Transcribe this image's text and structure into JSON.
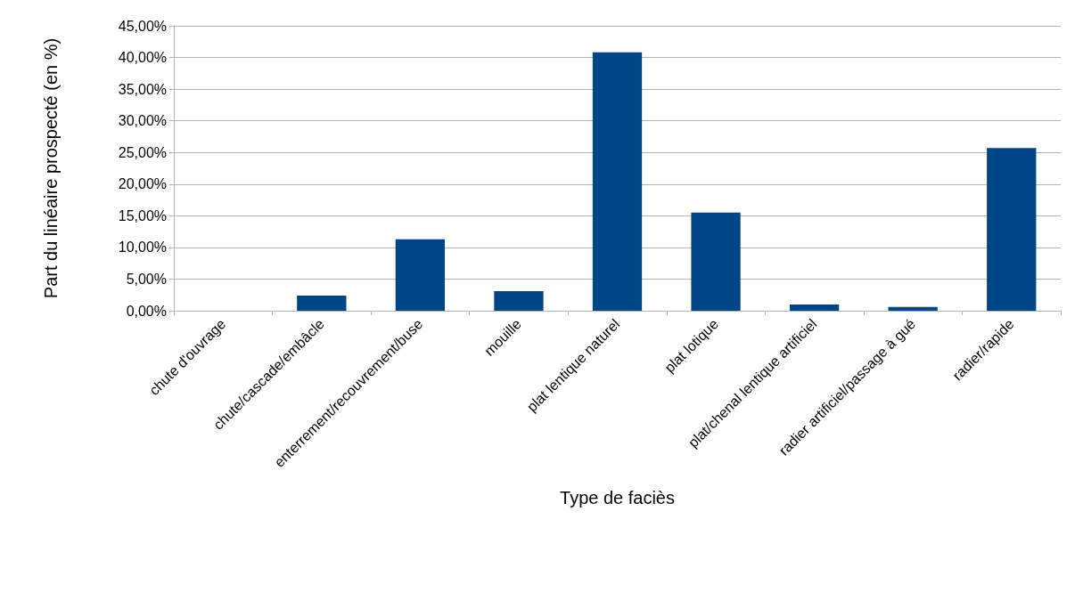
{
  "chart_data": {
    "type": "bar",
    "xlabel": "Type de faciès",
    "ylabel": "Part du linéaire prospecté (en %)",
    "categories": [
      "chute d'ouvrage",
      "chute/cascade/embâcle",
      "enterrement/recouvrement/buse",
      "mouille",
      "plat lentique naturel",
      "plat lotique",
      "plat/chenal lentique artificiel",
      "radier artificiel/passage à gué",
      "radier/rapide"
    ],
    "values": [
      0,
      2.4,
      11.3,
      3.1,
      40.8,
      15.5,
      1,
      0.6,
      25.7
    ],
    "color": "#004586",
    "ylim": [
      0,
      45
    ],
    "yticks": [
      {
        "value": 0,
        "label": "0,00%"
      },
      {
        "value": 5,
        "label": "5,00%"
      },
      {
        "value": 10,
        "label": "10,00%"
      },
      {
        "value": 15,
        "label": "15,00%"
      },
      {
        "value": 20,
        "label": "20,00%"
      },
      {
        "value": 25,
        "label": "25,00%"
      },
      {
        "value": 30,
        "label": "30,00%"
      },
      {
        "value": 35,
        "label": "35,00%"
      },
      {
        "value": 40,
        "label": "40,00%"
      },
      {
        "value": 45,
        "label": "45,00%"
      }
    ],
    "grid": "y"
  }
}
